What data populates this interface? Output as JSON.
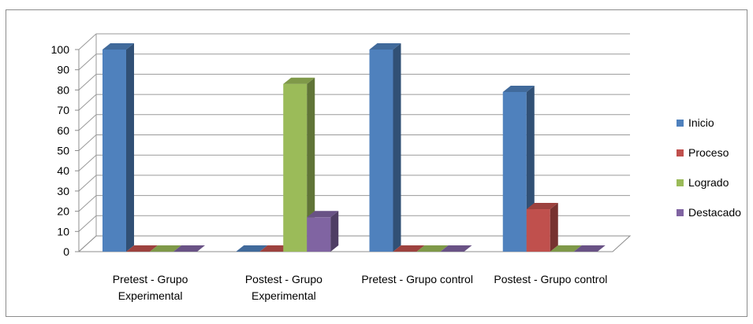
{
  "chart_data": {
    "type": "bar",
    "title": "",
    "xlabel": "",
    "ylabel": "",
    "ylim": [
      0,
      100
    ],
    "yticks": [
      0,
      10,
      20,
      30,
      40,
      50,
      60,
      70,
      80,
      90,
      100
    ],
    "grid": true,
    "legend_position": "right",
    "categories": [
      [
        "Pretest - Grupo",
        "Experimental"
      ],
      [
        "Postest - Grupo",
        "Experimental"
      ],
      [
        "Pretest - Grupo control"
      ],
      [
        "Postest - Grupo control"
      ]
    ],
    "series": [
      {
        "name": "Inicio",
        "color": "#4F81BD",
        "values": [
          100,
          0,
          100,
          79
        ]
      },
      {
        "name": "Proceso",
        "color": "#C0504D",
        "values": [
          0,
          0,
          0,
          21
        ]
      },
      {
        "name": "Logrado",
        "color": "#9BBB59",
        "values": [
          0,
          83,
          0,
          0
        ]
      },
      {
        "name": "Destacado",
        "color": "#8064A2",
        "values": [
          0,
          17,
          0,
          0
        ]
      }
    ]
  }
}
